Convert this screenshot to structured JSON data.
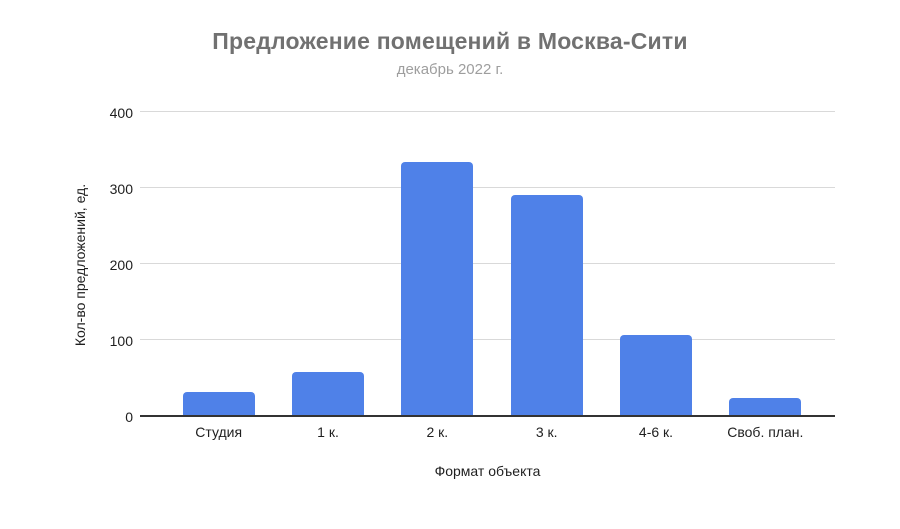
{
  "chart_data": {
    "type": "bar",
    "title": "Предложение помещений в Москва-Сити",
    "subtitle": "декабрь 2022 г.",
    "categories": [
      "Студия",
      "1 к.",
      "2 к.",
      "3 к.",
      "4-6 к.",
      "Своб. план."
    ],
    "values": [
      30,
      57,
      333,
      289,
      105,
      23
    ],
    "xlabel": "Формат объекта",
    "ylabel": "Кол-во предложений, ед.",
    "ylim": [
      0,
      400
    ],
    "yticks": [
      0,
      100,
      200,
      300,
      400
    ],
    "grid": true,
    "legend": false,
    "bar_color": "#4f81e8",
    "title_color": "#717171",
    "subtitle_color": "#9e9e9e",
    "axis_text_color": "#1f1f1f",
    "gridline_color": "#d9d9d9",
    "baseline_color": "#333333"
  }
}
